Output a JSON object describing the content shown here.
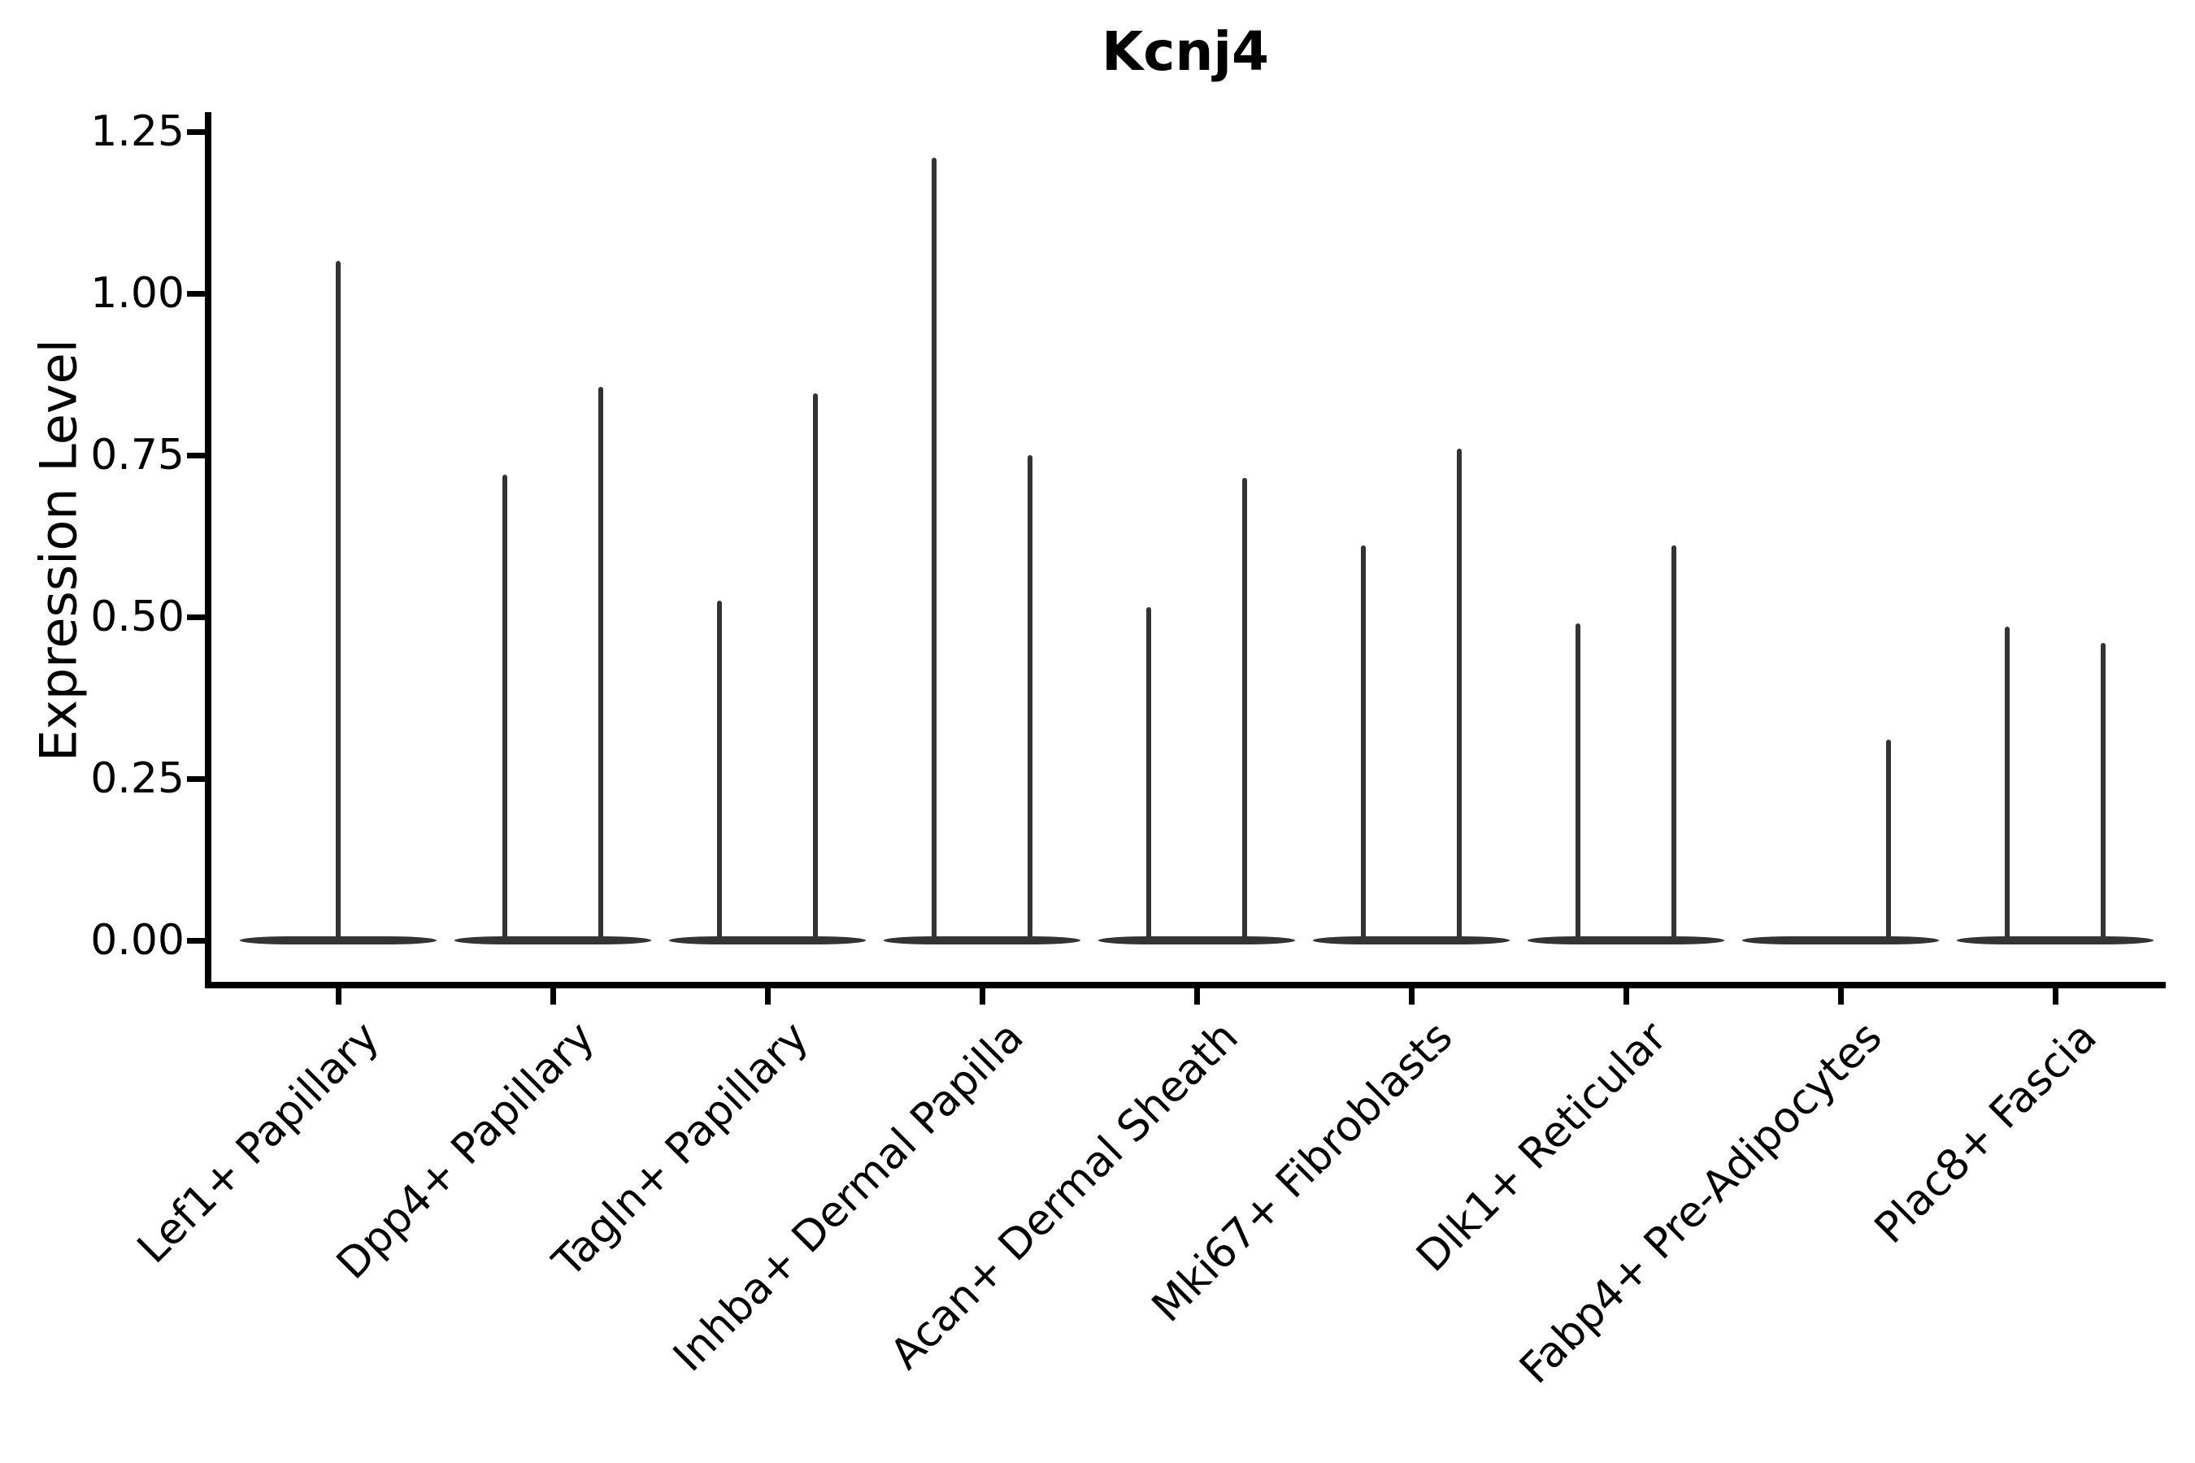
{
  "chart_data": {
    "type": "violin",
    "title": "Kcnj4",
    "ylabel": "Expression Level",
    "xlabel": "",
    "ylim": [
      0,
      1.28
    ],
    "grid": false,
    "legend": null,
    "x_tick_rotation": 45,
    "colors": {
      "violin": "#333333",
      "axis": "#000000",
      "background": "#ffffff"
    },
    "yticks": [
      {
        "value": 0.0,
        "label": "0.00"
      },
      {
        "value": 0.25,
        "label": "0.25"
      },
      {
        "value": 0.5,
        "label": "0.50"
      },
      {
        "value": 0.75,
        "label": "0.75"
      },
      {
        "value": 1.0,
        "label": "1.00"
      },
      {
        "value": 1.25,
        "label": "1.25"
      }
    ],
    "baseline_value": 0.0,
    "categories": [
      {
        "label": "Lef1+ Papillary",
        "violins": [
          {
            "position": "center",
            "max": 1.05
          }
        ]
      },
      {
        "label": "Dpp4+ Papillary",
        "violins": [
          {
            "position": "left",
            "max": 0.72
          },
          {
            "position": "right",
            "max": 0.855
          }
        ]
      },
      {
        "label": "Tagln+ Papillary",
        "violins": [
          {
            "position": "left",
            "max": 0.525
          },
          {
            "position": "right",
            "max": 0.845
          }
        ]
      },
      {
        "label": "Inhba+ Dermal Papilla",
        "violins": [
          {
            "position": "left",
            "max": 1.21
          },
          {
            "position": "right",
            "max": 0.75
          }
        ]
      },
      {
        "label": "Acan+ Dermal Sheath",
        "violins": [
          {
            "position": "left",
            "max": 0.515
          },
          {
            "position": "right",
            "max": 0.715
          }
        ]
      },
      {
        "label": "Mki67+ Fibroblasts",
        "violins": [
          {
            "position": "left",
            "max": 0.61
          },
          {
            "position": "right",
            "max": 0.76
          }
        ]
      },
      {
        "label": "Dlk1+ Reticular",
        "violins": [
          {
            "position": "left",
            "max": 0.49
          },
          {
            "position": "right",
            "max": 0.61
          }
        ]
      },
      {
        "label": "Fabp4+ Pre-Adipocytes",
        "violins": [
          {
            "position": "right",
            "max": 0.31
          }
        ]
      },
      {
        "label": "Plac8+ Fascia",
        "violins": [
          {
            "position": "left",
            "max": 0.485
          },
          {
            "position": "right",
            "max": 0.46
          }
        ]
      }
    ]
  }
}
